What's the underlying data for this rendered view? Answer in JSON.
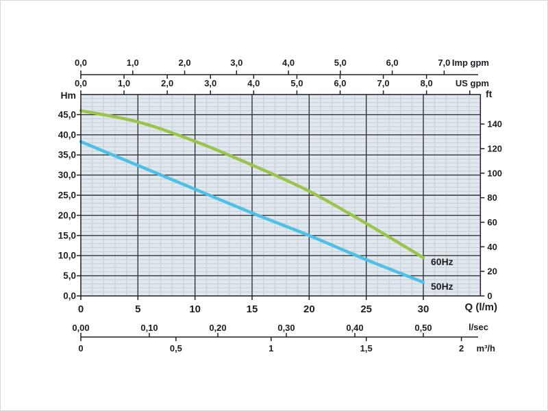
{
  "window": {
    "background": "#ffffff",
    "border_color": "#d9d9d9"
  },
  "chart_data": {
    "type": "line",
    "title": "",
    "description": "Pump head/flow performance curves at 50Hz and 60Hz",
    "grid": {
      "background": "#e1e8ed",
      "minor_line_color": "#c3ced8",
      "major_line_color": "#2e3338",
      "axis_color": "#1b1e22",
      "minor_step_x": 1,
      "minor_step_y": 1,
      "major_step_x": 5,
      "major_step_y": 5
    },
    "x_primary": {
      "label": "Q (l/m)",
      "min": 0,
      "max": 35,
      "ticks": [
        {
          "v": 0,
          "t": "0"
        },
        {
          "v": 5,
          "t": "5"
        },
        {
          "v": 10,
          "t": "10"
        },
        {
          "v": 15,
          "t": "15"
        },
        {
          "v": 20,
          "t": "20"
        },
        {
          "v": 25,
          "t": "25"
        },
        {
          "v": 30,
          "t": "30"
        }
      ]
    },
    "y_primary": {
      "label": "Hm",
      "min": 0,
      "max": 50,
      "ticks": [
        {
          "v": 45,
          "t": "45,0"
        },
        {
          "v": 40,
          "t": "40,0"
        },
        {
          "v": 35,
          "t": "35,0"
        },
        {
          "v": 30,
          "t": "30,0"
        },
        {
          "v": 25,
          "t": "25,0"
        },
        {
          "v": 20,
          "t": "20,0"
        },
        {
          "v": 15,
          "t": "15,0"
        },
        {
          "v": 10,
          "t": "10,0"
        },
        {
          "v": 5,
          "t": "5,0"
        },
        {
          "v": 0,
          "t": "0,0"
        }
      ]
    },
    "y_secondary": {
      "label": "ft",
      "meters_per_unit": 0.3048,
      "ticks": [
        {
          "v": 140,
          "t": "140"
        },
        {
          "v": 120,
          "t": "120"
        },
        {
          "v": 100,
          "t": "100"
        },
        {
          "v": 80,
          "t": "80"
        },
        {
          "v": 60,
          "t": "60"
        },
        {
          "v": 40,
          "t": "40"
        },
        {
          "v": 20,
          "t": "20"
        },
        {
          "v": 0,
          "t": "0"
        }
      ]
    },
    "x_top": [
      {
        "label": "Imp gpm",
        "lm_per_unit": 4.546,
        "tick_side": "up",
        "ticks": [
          {
            "v": 0,
            "t": "0,0"
          },
          {
            "v": 1,
            "t": "1,0"
          },
          {
            "v": 2,
            "t": "2,0"
          },
          {
            "v": 3,
            "t": "3,0"
          },
          {
            "v": 4,
            "t": "4,0"
          },
          {
            "v": 5,
            "t": "5,0"
          },
          {
            "v": 6,
            "t": "6,0"
          },
          {
            "v": 7,
            "t": "7,0"
          }
        ]
      },
      {
        "label": "US gpm",
        "lm_per_unit": 3.785,
        "tick_side": "down",
        "border_tick_values": [
          0,
          1,
          2,
          3,
          4,
          5,
          6,
          7,
          8,
          9
        ],
        "ticks": [
          {
            "v": 0,
            "t": "0,0"
          },
          {
            "v": 1,
            "t": "1,0"
          },
          {
            "v": 2,
            "t": "2,0"
          },
          {
            "v": 3,
            "t": "3,0"
          },
          {
            "v": 4,
            "t": "4,0"
          },
          {
            "v": 5,
            "t": "5,0"
          },
          {
            "v": 6,
            "t": "6,0"
          },
          {
            "v": 7,
            "t": "7,0"
          },
          {
            "v": 8,
            "t": "8,0"
          }
        ]
      }
    ],
    "x_bottom": [
      {
        "label": "l/sec",
        "lm_per_unit": 60,
        "tick_side": "up",
        "ticks": [
          {
            "v": 0.0,
            "t": "0,00"
          },
          {
            "v": 0.1,
            "t": "0,10"
          },
          {
            "v": 0.2,
            "t": "0,20"
          },
          {
            "v": 0.3,
            "t": "0,30"
          },
          {
            "v": 0.4,
            "t": "0,40"
          },
          {
            "v": 0.5,
            "t": "0,50"
          }
        ]
      },
      {
        "label": "m³/h",
        "lm_per_unit": 16.667,
        "tick_side": "down",
        "ticks": [
          {
            "v": 0,
            "t": "0"
          },
          {
            "v": 0.5,
            "t": "0,5"
          },
          {
            "v": 1,
            "t": "1"
          },
          {
            "v": 1.5,
            "t": "1,5"
          },
          {
            "v": 2,
            "t": "2"
          }
        ]
      }
    ],
    "series": [
      {
        "name": "60Hz",
        "color": "#9cc44d",
        "x": [
          0,
          5,
          10,
          15,
          20,
          25,
          30
        ],
        "y": [
          46.0,
          43.2,
          38.4,
          32.5,
          26.0,
          18.0,
          9.5
        ]
      },
      {
        "name": "50Hz",
        "color": "#4cc0e6",
        "x": [
          0,
          5,
          10,
          15,
          20,
          25,
          30
        ],
        "y": [
          38.3,
          32.4,
          26.5,
          20.6,
          15.0,
          9.0,
          3.4
        ]
      }
    ],
    "legend_position": "end-of-curve"
  }
}
